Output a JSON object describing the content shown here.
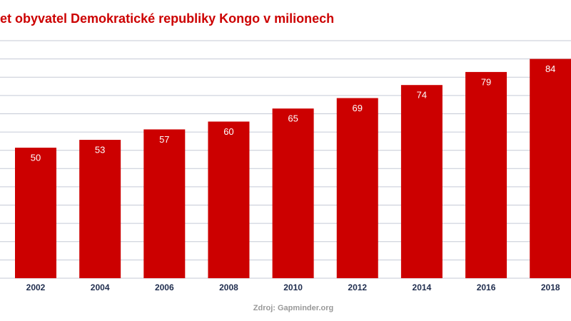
{
  "chart_data": {
    "type": "bar",
    "title": "et obyvatel Demokratické republiky Kongo v milionech",
    "source": "Zdroj: Gapminder.org",
    "categories": [
      "2002",
      "2004",
      "2006",
      "2008",
      "2010",
      "2012",
      "2014",
      "2016",
      "2018"
    ],
    "values": [
      50,
      53,
      57,
      60,
      65,
      69,
      74,
      79,
      84
    ],
    "color": "#cc0000",
    "ylim": [
      0,
      91
    ],
    "yticks": [
      0,
      7,
      14,
      21,
      28,
      35,
      42,
      49,
      56,
      63,
      70,
      77,
      84,
      91
    ],
    "grid": true
  }
}
